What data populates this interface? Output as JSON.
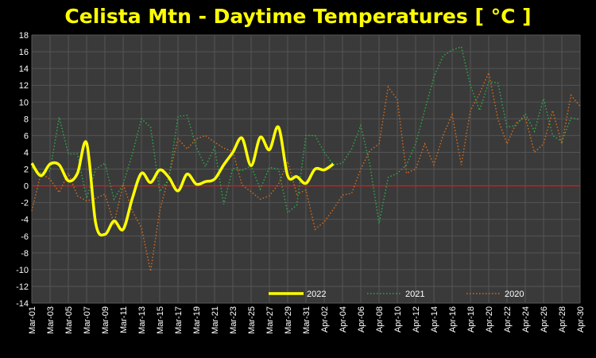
{
  "chart_data": {
    "type": "line",
    "title": "Celista Mtn - Daytime Temperatures [ °C ]",
    "xlabel": "",
    "ylabel": "",
    "ylim": [
      -14,
      18
    ],
    "y_ticks": [
      18,
      16,
      14,
      12,
      10,
      8,
      6,
      4,
      2,
      0,
      -2,
      -4,
      -6,
      -8,
      -10,
      -12,
      -14
    ],
    "x_range": [
      "Mar-01",
      "Apr-30"
    ],
    "x_tick_labels": [
      "Mar-01",
      "Mar-03",
      "Mar-05",
      "Mar-07",
      "Mar-09",
      "Mar-11",
      "Mar-13",
      "Mar-15",
      "Mar-17",
      "Mar-19",
      "Mar-21",
      "Mar-23",
      "Mar-25",
      "Mar-27",
      "Mar-29",
      "Mar-31",
      "Apr-02",
      "Apr-04",
      "Apr-06",
      "Apr-08",
      "Apr-10",
      "Apr-12",
      "Apr-14",
      "Apr-16",
      "Apr-18",
      "Apr-20",
      "Apr-22",
      "Apr-24",
      "Apr-26",
      "Apr-28",
      "Apr-30"
    ],
    "grid": true,
    "zero_line": true,
    "legend_position": "bottom-right",
    "series": [
      {
        "name": "2022",
        "color": "#ffff00",
        "style": "solid",
        "smooth": true,
        "x": [
          "Mar-01",
          "Mar-02",
          "Mar-03",
          "Mar-04",
          "Mar-05",
          "Mar-06",
          "Mar-07",
          "Mar-08",
          "Mar-09",
          "Mar-10",
          "Mar-11",
          "Mar-12",
          "Mar-13",
          "Mar-14",
          "Mar-15",
          "Mar-16",
          "Mar-17",
          "Mar-18",
          "Mar-19",
          "Mar-20",
          "Mar-21",
          "Mar-22",
          "Mar-23",
          "Mar-24",
          "Mar-25",
          "Mar-26",
          "Mar-27",
          "Mar-28",
          "Mar-29",
          "Mar-30",
          "Mar-31",
          "Apr-01",
          "Apr-02",
          "Apr-03",
          "Apr-04"
        ],
        "values": [
          2.7,
          1.2,
          2.6,
          2.5,
          0.6,
          1.5,
          5.1,
          -4.5,
          -5.8,
          -4.2,
          -5.2,
          -1.5,
          1.5,
          0.4,
          1.9,
          1.0,
          -0.6,
          1.4,
          0.2,
          0.5,
          0.8,
          2.5,
          4.0,
          5.7,
          2.4,
          5.8,
          4.3,
          7.0,
          1.2,
          1.1,
          0.3,
          2.0,
          1.9,
          2.6,
          null
        ]
      },
      {
        "name": "2021",
        "color": "#2ea84a",
        "style": "dotted",
        "smooth": false,
        "x": [
          "Mar-01",
          "Mar-02",
          "Mar-03",
          "Mar-04",
          "Mar-05",
          "Mar-06",
          "Mar-07",
          "Mar-08",
          "Mar-09",
          "Mar-10",
          "Mar-11",
          "Mar-12",
          "Mar-13",
          "Mar-14",
          "Mar-15",
          "Mar-16",
          "Mar-17",
          "Mar-18",
          "Mar-19",
          "Mar-20",
          "Mar-21",
          "Mar-22",
          "Mar-23",
          "Mar-24",
          "Mar-25",
          "Mar-26",
          "Mar-27",
          "Mar-28",
          "Mar-29",
          "Mar-30",
          "Mar-31",
          "Apr-01",
          "Apr-02",
          "Apr-03",
          "Apr-04",
          "Apr-05",
          "Apr-06",
          "Apr-07",
          "Apr-08",
          "Apr-09",
          "Apr-10",
          "Apr-11",
          "Apr-12",
          "Apr-13",
          "Apr-14",
          "Apr-15",
          "Apr-16",
          "Apr-17",
          "Apr-18",
          "Apr-19",
          "Apr-20",
          "Apr-21",
          "Apr-22",
          "Apr-23",
          "Apr-24",
          "Apr-25",
          "Apr-26",
          "Apr-27",
          "Apr-28",
          "Apr-29",
          "Apr-30"
        ],
        "values": [
          2.2,
          1.5,
          1.8,
          8.2,
          3.8,
          3.8,
          -1.5,
          2.0,
          2.7,
          -1.6,
          0.2,
          3.8,
          8.0,
          7.0,
          -0.7,
          0.8,
          8.3,
          8.4,
          4.6,
          2.3,
          4.6,
          -2.2,
          2.1,
          1.8,
          2.4,
          -0.4,
          2.2,
          2.0,
          -3.2,
          -2.3,
          6.0,
          6.0,
          4.0,
          2.5,
          2.7,
          4.4,
          7.2,
          2.5,
          -4.5,
          1.0,
          1.5,
          2.5,
          5.0,
          9.0,
          13.0,
          15.5,
          16.2,
          16.6,
          12.0,
          9.0,
          12.4,
          12.3,
          7.0,
          7.2,
          8.6,
          6.5,
          10.4,
          6.0,
          5.3,
          8.1,
          7.9
        ]
      },
      {
        "name": "2020",
        "color": "#d46a1a",
        "style": "dotted",
        "smooth": false,
        "x": [
          "Mar-01",
          "Mar-02",
          "Mar-03",
          "Mar-04",
          "Mar-05",
          "Mar-06",
          "Mar-07",
          "Mar-08",
          "Mar-09",
          "Mar-10",
          "Mar-11",
          "Mar-12",
          "Mar-13",
          "Mar-14",
          "Mar-15",
          "Mar-16",
          "Mar-17",
          "Mar-18",
          "Mar-19",
          "Mar-20",
          "Mar-21",
          "Mar-22",
          "Mar-23",
          "Mar-24",
          "Mar-25",
          "Mar-26",
          "Mar-27",
          "Mar-28",
          "Mar-29",
          "Mar-30",
          "Mar-31",
          "Apr-01",
          "Apr-02",
          "Apr-03",
          "Apr-04",
          "Apr-05",
          "Apr-06",
          "Apr-07",
          "Apr-08",
          "Apr-09",
          "Apr-10",
          "Apr-11",
          "Apr-12",
          "Apr-13",
          "Apr-14",
          "Apr-15",
          "Apr-16",
          "Apr-17",
          "Apr-18",
          "Apr-19",
          "Apr-20",
          "Apr-21",
          "Apr-22",
          "Apr-23",
          "Apr-24",
          "Apr-25",
          "Apr-26",
          "Apr-27",
          "Apr-28",
          "Apr-29",
          "Apr-30"
        ],
        "values": [
          -3.0,
          1.5,
          0.8,
          -0.8,
          1.5,
          -1.2,
          -1.8,
          -1.5,
          -1.0,
          -4.5,
          0.2,
          -3.0,
          -5.0,
          -10.2,
          -3.0,
          1.2,
          5.6,
          4.4,
          5.6,
          6.0,
          5.2,
          4.5,
          4.1,
          0.1,
          -0.7,
          -1.6,
          -1.2,
          0.2,
          2.9,
          -1.0,
          -0.5,
          -5.2,
          -4.3,
          -2.8,
          -1.1,
          -0.9,
          2.0,
          4.2,
          5.0,
          11.8,
          10.3,
          1.5,
          2.0,
          5.0,
          2.5,
          6.0,
          8.5,
          2.5,
          9.0,
          11.0,
          13.5,
          8.0,
          5.0,
          7.5,
          8.2,
          4.0,
          5.0,
          9.0,
          5.0,
          10.8,
          9.5
        ]
      }
    ]
  }
}
